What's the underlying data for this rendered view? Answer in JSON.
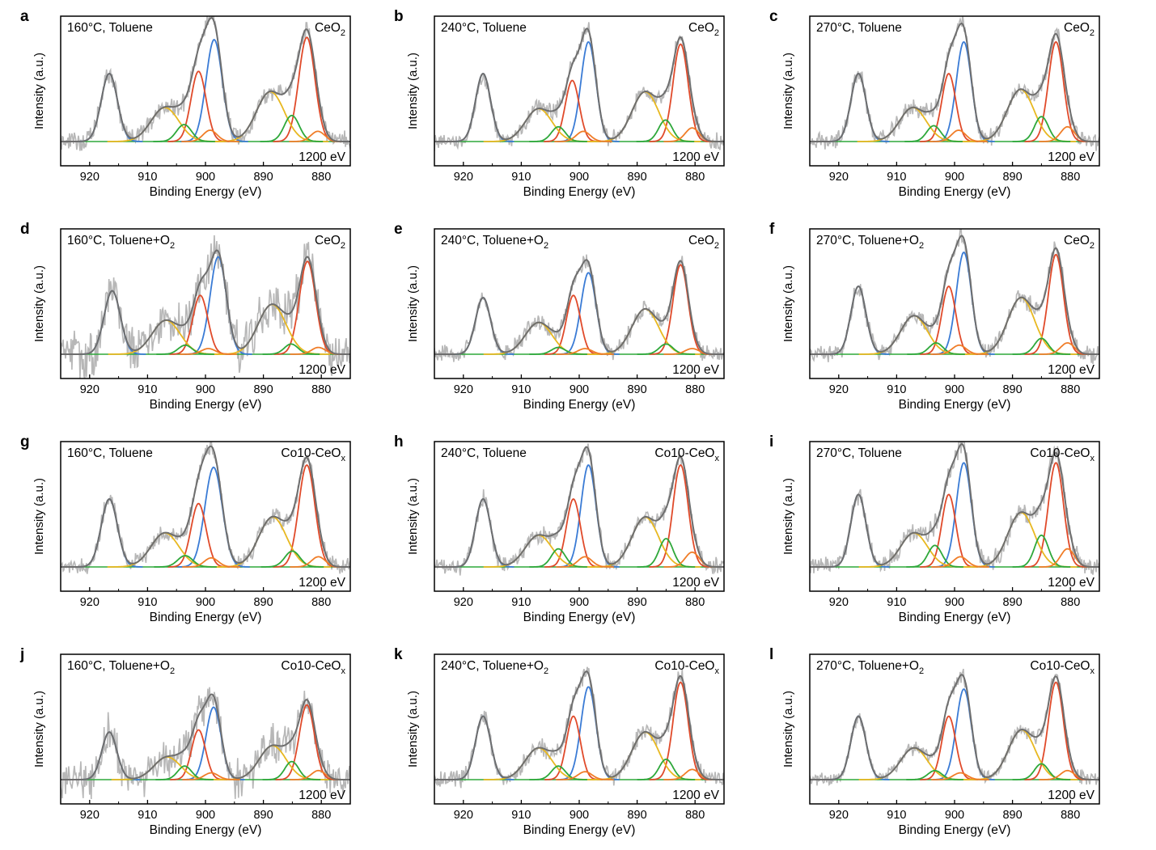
{
  "figure": {
    "x_axis_label": "Binding Energy (eV)",
    "y_axis_label": "Intensity (a.u.)",
    "x_ticks": [
      920,
      910,
      900,
      890,
      880
    ],
    "xlim": [
      925,
      875
    ],
    "x_reversed": true,
    "energy_label": "1200 eV",
    "component_colors": {
      "raw": "#b7b7b7",
      "envelope": "#6e6e6e",
      "v_u_doublet": "#3a7bd5",
      "ce3_a": "#e04a2a",
      "ce3_b": "#e8b820",
      "ce3_c": "#2ea83a",
      "ce3_d": "#f07d28",
      "baseline": "#2ea83a"
    }
  },
  "chart_data": [
    {
      "panel": "a",
      "type": "line",
      "condition": "160°C, Toluene",
      "sample": "CeO",
      "sample_sub": "2",
      "xlabel": "Binding Energy (eV)",
      "ylabel": "Intensity (a.u.)",
      "energy": "1200 eV",
      "noise": 0.07,
      "peaks": [
        {
          "component": "blue",
          "center": 916.6,
          "height": 0.6,
          "width": 1.4
        },
        {
          "component": "blue",
          "center": 898.5,
          "height": 0.9,
          "width": 1.4
        },
        {
          "component": "red",
          "center": 901.2,
          "height": 0.62,
          "width": 1.3
        },
        {
          "component": "red",
          "center": 882.5,
          "height": 0.92,
          "width": 1.4
        },
        {
          "component": "yellow",
          "center": 907.0,
          "height": 0.3,
          "width": 2.4
        },
        {
          "component": "yellow",
          "center": 888.8,
          "height": 0.44,
          "width": 2.4
        },
        {
          "component": "green",
          "center": 903.7,
          "height": 0.15,
          "width": 1.3
        },
        {
          "component": "green",
          "center": 885.1,
          "height": 0.23,
          "width": 1.3
        },
        {
          "component": "orange",
          "center": 899.2,
          "height": 0.1,
          "width": 1.2
        },
        {
          "component": "orange",
          "center": 880.6,
          "height": 0.09,
          "width": 1.2
        }
      ]
    },
    {
      "panel": "b",
      "type": "line",
      "condition": "240°C, Toluene",
      "sample": "CeO",
      "sample_sub": "2",
      "xlabel": "Binding Energy (eV)",
      "ylabel": "Intensity (a.u.)",
      "energy": "1200 eV",
      "noise": 0.06,
      "peaks": [
        {
          "component": "blue",
          "center": 916.6,
          "height": 0.6,
          "width": 1.3
        },
        {
          "component": "blue",
          "center": 898.4,
          "height": 0.88,
          "width": 1.3
        },
        {
          "component": "red",
          "center": 901.2,
          "height": 0.54,
          "width": 1.2
        },
        {
          "component": "red",
          "center": 882.5,
          "height": 0.86,
          "width": 1.3
        },
        {
          "component": "yellow",
          "center": 907.0,
          "height": 0.29,
          "width": 2.3
        },
        {
          "component": "yellow",
          "center": 888.6,
          "height": 0.44,
          "width": 2.3
        },
        {
          "component": "green",
          "center": 903.6,
          "height": 0.13,
          "width": 1.2
        },
        {
          "component": "green",
          "center": 885.1,
          "height": 0.19,
          "width": 1.2
        },
        {
          "component": "orange",
          "center": 899.3,
          "height": 0.09,
          "width": 1.2
        },
        {
          "component": "orange",
          "center": 880.5,
          "height": 0.12,
          "width": 1.2
        }
      ]
    },
    {
      "panel": "c",
      "type": "line",
      "condition": "270°C, Toluene",
      "sample": "CeO",
      "sample_sub": "2",
      "xlabel": "Binding Energy (eV)",
      "ylabel": "Intensity (a.u.)",
      "energy": "1200 eV",
      "noise": 0.06,
      "peaks": [
        {
          "component": "blue",
          "center": 916.6,
          "height": 0.6,
          "width": 1.3
        },
        {
          "component": "blue",
          "center": 898.4,
          "height": 0.88,
          "width": 1.3
        },
        {
          "component": "red",
          "center": 901.0,
          "height": 0.6,
          "width": 1.2
        },
        {
          "component": "red",
          "center": 882.5,
          "height": 0.88,
          "width": 1.3
        },
        {
          "component": "yellow",
          "center": 907.2,
          "height": 0.3,
          "width": 2.3
        },
        {
          "component": "yellow",
          "center": 888.6,
          "height": 0.46,
          "width": 2.3
        },
        {
          "component": "green",
          "center": 903.6,
          "height": 0.14,
          "width": 1.2
        },
        {
          "component": "green",
          "center": 885.0,
          "height": 0.22,
          "width": 1.2
        },
        {
          "component": "orange",
          "center": 899.3,
          "height": 0.1,
          "width": 1.2
        },
        {
          "component": "orange",
          "center": 880.5,
          "height": 0.13,
          "width": 1.2
        }
      ]
    },
    {
      "panel": "d",
      "type": "line",
      "condition": "160°C, Toluene+O",
      "condition_sub": "2",
      "sample": "CeO",
      "sample_sub": "2",
      "xlabel": "Binding Energy (eV)",
      "ylabel": "Intensity (a.u.)",
      "energy": "1200 eV",
      "noise": 0.16,
      "peaks": [
        {
          "component": "blue",
          "center": 916.1,
          "height": 0.56,
          "width": 1.4
        },
        {
          "component": "blue",
          "center": 897.8,
          "height": 0.86,
          "width": 1.4
        },
        {
          "component": "red",
          "center": 900.9,
          "height": 0.52,
          "width": 1.3
        },
        {
          "component": "red",
          "center": 882.4,
          "height": 0.82,
          "width": 1.4
        },
        {
          "component": "yellow",
          "center": 906.8,
          "height": 0.3,
          "width": 2.4
        },
        {
          "component": "yellow",
          "center": 888.5,
          "height": 0.44,
          "width": 2.4
        },
        {
          "component": "green",
          "center": 903.5,
          "height": 0.08,
          "width": 1.2
        },
        {
          "component": "green",
          "center": 885.2,
          "height": 0.09,
          "width": 1.2
        },
        {
          "component": "orange",
          "center": 899.5,
          "height": 0.05,
          "width": 1.2
        },
        {
          "component": "orange",
          "center": 880.5,
          "height": 0.06,
          "width": 1.2
        }
      ]
    },
    {
      "panel": "e",
      "type": "line",
      "condition": "240°C, Toluene+O",
      "condition_sub": "2",
      "sample": "CeO",
      "sample_sub": "2",
      "xlabel": "Binding Energy (eV)",
      "ylabel": "Intensity (a.u.)",
      "energy": "1200 eV",
      "noise": 0.06,
      "peaks": [
        {
          "component": "blue",
          "center": 916.6,
          "height": 0.5,
          "width": 1.3
        },
        {
          "component": "blue",
          "center": 898.4,
          "height": 0.72,
          "width": 1.3
        },
        {
          "component": "red",
          "center": 901.0,
          "height": 0.52,
          "width": 1.2
        },
        {
          "component": "red",
          "center": 882.5,
          "height": 0.79,
          "width": 1.3
        },
        {
          "component": "yellow",
          "center": 907.0,
          "height": 0.28,
          "width": 2.3
        },
        {
          "component": "yellow",
          "center": 888.6,
          "height": 0.4,
          "width": 2.3
        },
        {
          "component": "green",
          "center": 903.6,
          "height": 0.06,
          "width": 1.2
        },
        {
          "component": "green",
          "center": 885.0,
          "height": 0.09,
          "width": 1.2
        },
        {
          "component": "orange",
          "center": 899.0,
          "height": 0.05,
          "width": 1.2
        },
        {
          "component": "orange",
          "center": 880.5,
          "height": 0.05,
          "width": 1.2
        }
      ]
    },
    {
      "panel": "f",
      "type": "line",
      "condition": "270°C, Toluene+O",
      "condition_sub": "2",
      "sample": "CeO",
      "sample_sub": "2",
      "xlabel": "Binding Energy (eV)",
      "ylabel": "Intensity (a.u.)",
      "energy": "1200 eV",
      "noise": 0.06,
      "peaks": [
        {
          "component": "blue",
          "center": 916.6,
          "height": 0.6,
          "width": 1.3
        },
        {
          "component": "blue",
          "center": 898.4,
          "height": 0.9,
          "width": 1.3
        },
        {
          "component": "red",
          "center": 901.0,
          "height": 0.6,
          "width": 1.2
        },
        {
          "component": "red",
          "center": 882.5,
          "height": 0.88,
          "width": 1.3
        },
        {
          "component": "yellow",
          "center": 907.0,
          "height": 0.34,
          "width": 2.3
        },
        {
          "component": "yellow",
          "center": 888.5,
          "height": 0.5,
          "width": 2.3
        },
        {
          "component": "green",
          "center": 903.2,
          "height": 0.1,
          "width": 1.2
        },
        {
          "component": "green",
          "center": 885.0,
          "height": 0.14,
          "width": 1.2
        },
        {
          "component": "orange",
          "center": 899.2,
          "height": 0.08,
          "width": 1.2
        },
        {
          "component": "orange",
          "center": 880.5,
          "height": 0.1,
          "width": 1.2
        }
      ]
    },
    {
      "panel": "g",
      "type": "line",
      "condition": "160°C, Toluene",
      "sample": "Co10-CeO",
      "sample_sub": "x",
      "xlabel": "Binding Energy (eV)",
      "ylabel": "Intensity (a.u.)",
      "energy": "1200 eV",
      "noise": 0.06,
      "peaks": [
        {
          "component": "blue",
          "center": 916.6,
          "height": 0.6,
          "width": 1.4
        },
        {
          "component": "blue",
          "center": 898.6,
          "height": 0.88,
          "width": 1.5
        },
        {
          "component": "red",
          "center": 901.2,
          "height": 0.56,
          "width": 1.3
        },
        {
          "component": "red",
          "center": 882.5,
          "height": 0.9,
          "width": 1.4
        },
        {
          "component": "yellow",
          "center": 907.0,
          "height": 0.3,
          "width": 2.4
        },
        {
          "component": "yellow",
          "center": 888.4,
          "height": 0.44,
          "width": 2.4
        },
        {
          "component": "green",
          "center": 903.5,
          "height": 0.1,
          "width": 1.3
        },
        {
          "component": "green",
          "center": 885.0,
          "height": 0.14,
          "width": 1.3
        },
        {
          "component": "orange",
          "center": 899.0,
          "height": 0.08,
          "width": 1.2
        },
        {
          "component": "orange",
          "center": 880.5,
          "height": 0.09,
          "width": 1.2
        }
      ]
    },
    {
      "panel": "h",
      "type": "line",
      "condition": "240°C, Toluene",
      "sample": "Co10-CeO",
      "sample_sub": "x",
      "xlabel": "Binding Energy (eV)",
      "ylabel": "Intensity (a.u.)",
      "energy": "1200 eV",
      "noise": 0.06,
      "peaks": [
        {
          "component": "blue",
          "center": 916.6,
          "height": 0.6,
          "width": 1.3
        },
        {
          "component": "blue",
          "center": 898.4,
          "height": 0.9,
          "width": 1.3
        },
        {
          "component": "red",
          "center": 901.0,
          "height": 0.6,
          "width": 1.2
        },
        {
          "component": "red",
          "center": 882.5,
          "height": 0.9,
          "width": 1.3
        },
        {
          "component": "yellow",
          "center": 907.0,
          "height": 0.28,
          "width": 2.3
        },
        {
          "component": "yellow",
          "center": 888.6,
          "height": 0.44,
          "width": 2.3
        },
        {
          "component": "green",
          "center": 903.6,
          "height": 0.16,
          "width": 1.2
        },
        {
          "component": "green",
          "center": 885.0,
          "height": 0.25,
          "width": 1.2
        },
        {
          "component": "orange",
          "center": 899.0,
          "height": 0.09,
          "width": 1.2
        },
        {
          "component": "orange",
          "center": 880.5,
          "height": 0.13,
          "width": 1.2
        }
      ]
    },
    {
      "panel": "i",
      "type": "line",
      "condition": "270°C, Toluene",
      "sample": "Co10-CeO",
      "sample_sub": "x",
      "xlabel": "Binding Energy (eV)",
      "ylabel": "Intensity (a.u.)",
      "energy": "1200 eV",
      "noise": 0.07,
      "peaks": [
        {
          "component": "blue",
          "center": 916.6,
          "height": 0.64,
          "width": 1.3
        },
        {
          "component": "blue",
          "center": 898.4,
          "height": 0.92,
          "width": 1.3
        },
        {
          "component": "red",
          "center": 901.0,
          "height": 0.64,
          "width": 1.2
        },
        {
          "component": "red",
          "center": 882.5,
          "height": 0.92,
          "width": 1.3
        },
        {
          "component": "yellow",
          "center": 907.0,
          "height": 0.3,
          "width": 2.3
        },
        {
          "component": "yellow",
          "center": 888.5,
          "height": 0.48,
          "width": 2.3
        },
        {
          "component": "green",
          "center": 903.4,
          "height": 0.19,
          "width": 1.2
        },
        {
          "component": "green",
          "center": 885.0,
          "height": 0.28,
          "width": 1.2
        },
        {
          "component": "orange",
          "center": 899.0,
          "height": 0.09,
          "width": 1.2
        },
        {
          "component": "orange",
          "center": 880.5,
          "height": 0.16,
          "width": 1.2
        }
      ]
    },
    {
      "panel": "j",
      "type": "line",
      "condition": "160°C, Toluene+O",
      "condition_sub": "2",
      "sample": "Co10-CeO",
      "sample_sub": "x",
      "xlabel": "Binding Energy (eV)",
      "ylabel": "Intensity (a.u.)",
      "energy": "1200 eV",
      "noise": 0.14,
      "peaks": [
        {
          "component": "blue",
          "center": 916.6,
          "height": 0.42,
          "width": 1.3
        },
        {
          "component": "blue",
          "center": 898.6,
          "height": 0.64,
          "width": 1.3
        },
        {
          "component": "red",
          "center": 901.2,
          "height": 0.44,
          "width": 1.2
        },
        {
          "component": "red",
          "center": 882.5,
          "height": 0.66,
          "width": 1.3
        },
        {
          "component": "yellow",
          "center": 906.6,
          "height": 0.2,
          "width": 2.3
        },
        {
          "component": "yellow",
          "center": 888.4,
          "height": 0.3,
          "width": 2.3
        },
        {
          "component": "green",
          "center": 903.6,
          "height": 0.12,
          "width": 1.2
        },
        {
          "component": "green",
          "center": 885.1,
          "height": 0.16,
          "width": 1.2
        },
        {
          "component": "orange",
          "center": 899.0,
          "height": 0.06,
          "width": 1.2
        },
        {
          "component": "orange",
          "center": 880.5,
          "height": 0.08,
          "width": 1.2
        }
      ]
    },
    {
      "panel": "k",
      "type": "line",
      "condition": "240°C, Toluene+O",
      "condition_sub": "2",
      "sample": "Co10-CeO",
      "sample_sub": "x",
      "xlabel": "Binding Energy (eV)",
      "ylabel": "Intensity (a.u.)",
      "energy": "1200 eV",
      "noise": 0.06,
      "peaks": [
        {
          "component": "blue",
          "center": 916.6,
          "height": 0.56,
          "width": 1.3
        },
        {
          "component": "blue",
          "center": 898.4,
          "height": 0.82,
          "width": 1.3
        },
        {
          "component": "red",
          "center": 901.0,
          "height": 0.56,
          "width": 1.2
        },
        {
          "component": "red",
          "center": 882.5,
          "height": 0.86,
          "width": 1.3
        },
        {
          "component": "yellow",
          "center": 907.0,
          "height": 0.28,
          "width": 2.3
        },
        {
          "component": "yellow",
          "center": 888.6,
          "height": 0.42,
          "width": 2.3
        },
        {
          "component": "green",
          "center": 903.6,
          "height": 0.12,
          "width": 1.2
        },
        {
          "component": "green",
          "center": 885.0,
          "height": 0.18,
          "width": 1.2
        },
        {
          "component": "orange",
          "center": 899.0,
          "height": 0.07,
          "width": 1.2
        },
        {
          "component": "orange",
          "center": 880.5,
          "height": 0.09,
          "width": 1.2
        }
      ]
    },
    {
      "panel": "l",
      "type": "line",
      "condition": "270°C, Toluene+O",
      "condition_sub": "2",
      "sample": "Co10-CeO",
      "sample_sub": "x",
      "xlabel": "Binding Energy (eV)",
      "ylabel": "Intensity (a.u.)",
      "energy": "1200 eV",
      "noise": 0.05,
      "peaks": [
        {
          "component": "blue",
          "center": 916.6,
          "height": 0.56,
          "width": 1.3
        },
        {
          "component": "blue",
          "center": 898.4,
          "height": 0.8,
          "width": 1.3
        },
        {
          "component": "red",
          "center": 901.0,
          "height": 0.56,
          "width": 1.2
        },
        {
          "component": "red",
          "center": 882.5,
          "height": 0.86,
          "width": 1.3
        },
        {
          "component": "yellow",
          "center": 907.0,
          "height": 0.28,
          "width": 2.3
        },
        {
          "component": "yellow",
          "center": 888.4,
          "height": 0.44,
          "width": 2.3
        },
        {
          "component": "green",
          "center": 903.4,
          "height": 0.08,
          "width": 1.2
        },
        {
          "component": "green",
          "center": 885.0,
          "height": 0.14,
          "width": 1.2
        },
        {
          "component": "orange",
          "center": 899.0,
          "height": 0.06,
          "width": 1.2
        },
        {
          "component": "orange",
          "center": 880.5,
          "height": 0.08,
          "width": 1.2
        }
      ]
    }
  ]
}
